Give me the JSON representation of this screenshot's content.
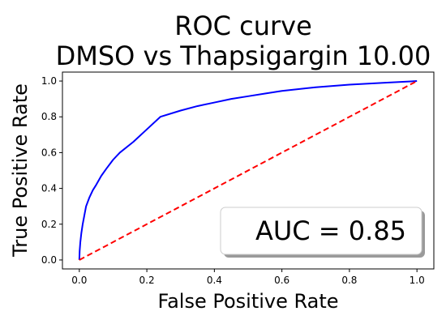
{
  "chart_data": {
    "type": "line",
    "title": "ROC curve",
    "subtitle": "DMSO vs Thapsigargin 10.00",
    "xlabel": "False Positive Rate",
    "ylabel": "True Positive Rate",
    "xlim": [
      -0.05,
      1.05
    ],
    "ylim": [
      -0.05,
      1.05
    ],
    "x_ticks": [
      0.0,
      0.2,
      0.4,
      0.6,
      0.8,
      1.0
    ],
    "y_ticks": [
      0.0,
      0.2,
      0.4,
      0.6,
      0.8,
      1.0
    ],
    "x_tick_labels": [
      "0.0",
      "0.2",
      "0.4",
      "0.6",
      "0.8",
      "1.0"
    ],
    "y_tick_labels": [
      "0.0",
      "0.2",
      "0.4",
      "0.6",
      "0.8",
      "1.0"
    ],
    "grid": false,
    "series": [
      {
        "color": "#0000ff",
        "style": "solid",
        "x": [
          0.0,
          0.001,
          0.003,
          0.006,
          0.01,
          0.015,
          0.02,
          0.03,
          0.04,
          0.05,
          0.065,
          0.08,
          0.1,
          0.12,
          0.16,
          0.2,
          0.24,
          0.3,
          0.35,
          0.4,
          0.45,
          0.5,
          0.55,
          0.6,
          0.7,
          0.8,
          0.9,
          1.0
        ],
        "y": [
          0.0,
          0.05,
          0.1,
          0.15,
          0.2,
          0.25,
          0.3,
          0.35,
          0.39,
          0.42,
          0.47,
          0.51,
          0.56,
          0.6,
          0.66,
          0.73,
          0.8,
          0.835,
          0.86,
          0.88,
          0.9,
          0.915,
          0.93,
          0.945,
          0.965,
          0.98,
          0.99,
          1.0
        ]
      },
      {
        "color": "#ff0000",
        "style": "dashed",
        "x": [
          0.0,
          1.0
        ],
        "y": [
          0.0,
          1.0
        ]
      }
    ],
    "annotation": "AUC = 0.85"
  }
}
